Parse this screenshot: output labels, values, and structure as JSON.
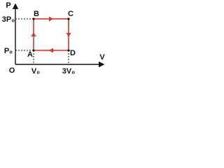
{
  "axes": {
    "y_label": "P",
    "x_label": "V",
    "origin": "O"
  },
  "ticks": {
    "y_top": "3P₀",
    "y_bottom": "P₀",
    "x_left": "V₀",
    "x_right": "3V₀"
  },
  "nodes": [
    {
      "label": "A"
    },
    {
      "label": "B"
    },
    {
      "label": "C"
    },
    {
      "label": "D"
    }
  ]
}
